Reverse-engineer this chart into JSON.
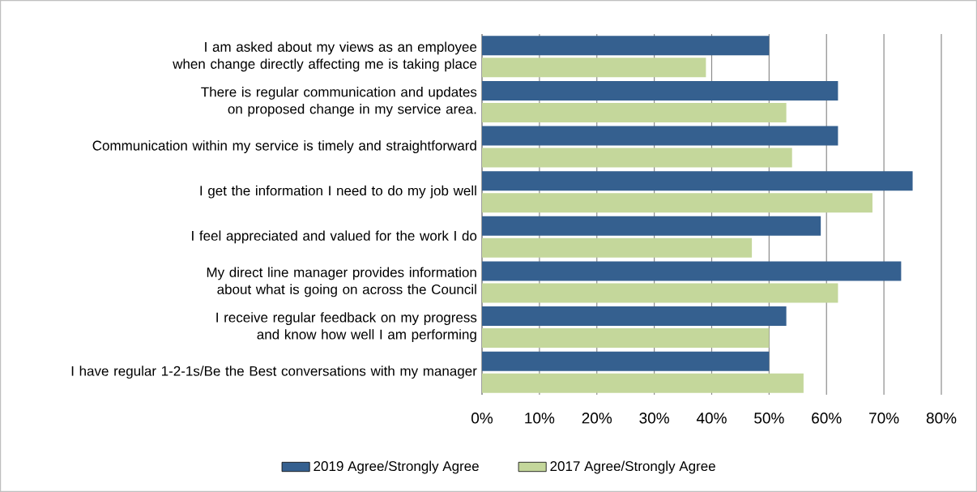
{
  "chart_data": {
    "type": "bar",
    "orientation": "horizontal",
    "categories": [
      "I am asked about my views as an employee when change directly affecting me is taking place",
      "There is regular communication and updates on proposed change in my service area.",
      "Communication within my service is timely and straightforward",
      "I get the information I need to do my job well",
      "I feel appreciated and valued for the work I do",
      "My direct line manager provides information about what is going on across the Council",
      "I receive regular feedback on my progress and know how well I am performing",
      "I have regular 1-2-1s/Be the Best conversations with my manager"
    ],
    "series": [
      {
        "name": "2019 Agree/Strongly Agree",
        "color": "#35608f",
        "values": [
          50,
          62,
          62,
          75,
          59,
          73,
          53,
          50
        ]
      },
      {
        "name": "2017 Agree/Strongly Agree",
        "color": "#c4d79b",
        "values": [
          39,
          53,
          54,
          68,
          47,
          62,
          50,
          56
        ]
      }
    ],
    "xlim": [
      0,
      80
    ],
    "xticks": [
      {
        "value": 0,
        "label": "0%"
      },
      {
        "value": 10,
        "label": "10%"
      },
      {
        "value": 20,
        "label": "20%"
      },
      {
        "value": 30,
        "label": "30%"
      },
      {
        "value": 40,
        "label": "40%"
      },
      {
        "value": 50,
        "label": "50%"
      },
      {
        "value": 60,
        "label": "60%"
      },
      {
        "value": 70,
        "label": "70%"
      },
      {
        "value": 80,
        "label": "80%"
      }
    ],
    "grid": "x",
    "legend": "bottom"
  }
}
